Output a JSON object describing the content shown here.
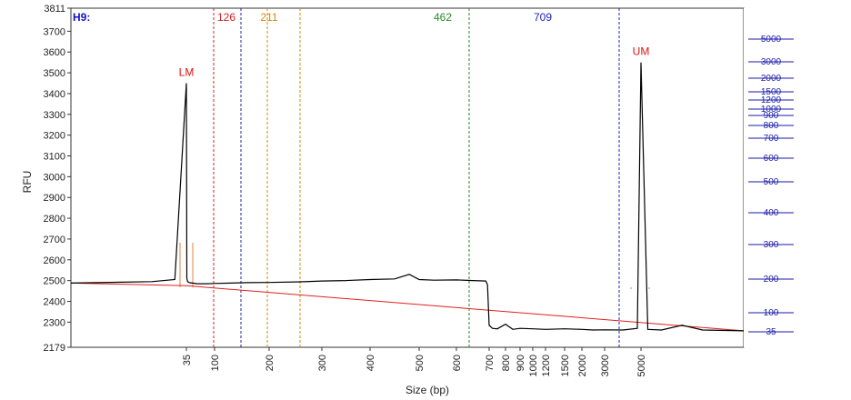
{
  "chart_data": {
    "type": "line",
    "well": "H9:",
    "ylabel": "RFU",
    "xlabel": "Size (bp)",
    "ylim": [
      2179,
      3811
    ],
    "y_ticks": [
      2179,
      2300,
      2400,
      2500,
      2600,
      2700,
      2800,
      2900,
      3000,
      3100,
      3200,
      3300,
      3400,
      3500,
      3600,
      3700,
      3811
    ],
    "x_ticks": [
      "35",
      "100",
      "200",
      "300",
      "400",
      "500",
      "600",
      "700",
      "800",
      "900",
      "1000",
      "1200",
      "1500",
      "2000",
      "3000",
      "5000"
    ],
    "ladder_labels": [
      "5000",
      "3000",
      "2000",
      "1500",
      "1200",
      "1000",
      "900",
      "800",
      "700",
      "600",
      "500",
      "400",
      "300",
      "200",
      "100",
      "35"
    ],
    "markers": [
      {
        "label": "LM",
        "size_bp": 35,
        "rfu": 3450,
        "color": "#e01010"
      },
      {
        "label": "UM",
        "size_bp": 5000,
        "rfu": 3550,
        "color": "#e01010"
      }
    ],
    "regions": [
      {
        "start_label": "126",
        "color": "#d62020"
      },
      {
        "start_label": "211",
        "color": "#d08a10"
      },
      {
        "start_label": "462",
        "color": "#2a8a2a"
      },
      {
        "start_label": "709",
        "color": "#2020c0"
      }
    ],
    "trace": {
      "color": "#000000",
      "points": [
        [
          25,
          2488
        ],
        [
          32,
          2495
        ],
        [
          34,
          2505
        ],
        [
          35,
          3450
        ],
        [
          36,
          2510
        ],
        [
          38,
          2495
        ],
        [
          42,
          2490
        ],
        [
          60,
          2485
        ],
        [
          80,
          2485
        ],
        [
          100,
          2486
        ],
        [
          130,
          2488
        ],
        [
          160,
          2490
        ],
        [
          200,
          2491
        ],
        [
          260,
          2494
        ],
        [
          300,
          2498
        ],
        [
          350,
          2500
        ],
        [
          400,
          2505
        ],
        [
          450,
          2508
        ],
        [
          480,
          2530
        ],
        [
          500,
          2505
        ],
        [
          540,
          2502
        ],
        [
          600,
          2503
        ],
        [
          650,
          2500
        ],
        [
          690,
          2498
        ],
        [
          695,
          2480
        ],
        [
          700,
          2285
        ],
        [
          720,
          2270
        ],
        [
          750,
          2268
        ],
        [
          800,
          2290
        ],
        [
          850,
          2265
        ],
        [
          900,
          2270
        ],
        [
          1000,
          2268
        ],
        [
          1200,
          2265
        ],
        [
          1500,
          2268
        ],
        [
          2000,
          2265
        ],
        [
          2500,
          2262
        ],
        [
          3000,
          2263
        ],
        [
          4000,
          2262
        ],
        [
          4800,
          2270
        ],
        [
          5000,
          3550
        ],
        [
          5200,
          2265
        ],
        [
          5600,
          2262
        ],
        [
          6200,
          2285
        ],
        [
          6800,
          2262
        ],
        [
          8000,
          2258
        ]
      ]
    },
    "baseline": {
      "color": "#e02020",
      "points": [
        [
          25,
          2488
        ],
        [
          35,
          2475
        ],
        [
          8000,
          2258
        ]
      ]
    }
  }
}
